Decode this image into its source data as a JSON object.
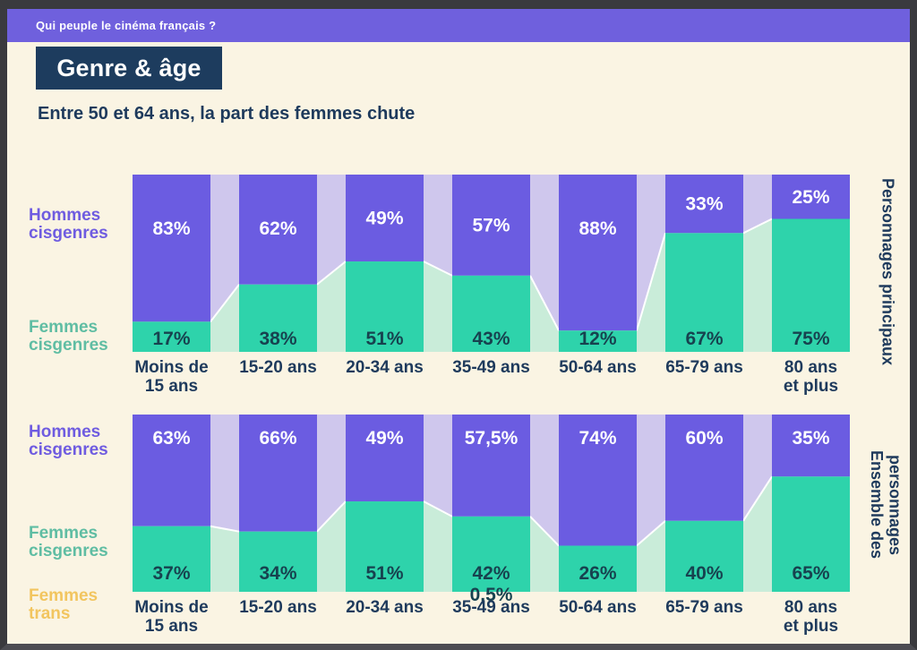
{
  "page": {
    "header_title": "Qui peuple le cinéma français ?",
    "title": "Genre & âge",
    "subtitle": "Entre 50 et 64 ans, la part des femmes chute"
  },
  "legend": {
    "hommes": "Hommes\ncisgenres",
    "femmes": "Femmes\ncisgenres",
    "trans": "Femmes\ntrans"
  },
  "colors": {
    "frame": "#3a3a3e",
    "background": "#faf4e3",
    "header_purple": "#6f60dd",
    "navy": "#1d3c5e",
    "bar_purple": "#6b5ce1",
    "bar_teal": "#2ed3ab",
    "connector_purple": "#cfc7ed",
    "connector_teal": "#c9ecd9",
    "value_on_teal": "#17424f",
    "value_on_purple": "#ffffff",
    "label_hommes": "#6f5ce0",
    "label_femmes": "#5fbda3",
    "label_trans": "#f2c55f"
  },
  "chart_data": [
    {
      "type": "area",
      "title": "Personnages principaux",
      "categories": [
        "Moins de\n15 ans",
        "15-20 ans",
        "20-34 ans",
        "35-49 ans",
        "50-64 ans",
        "65-79 ans",
        "80 ans\net plus"
      ],
      "ylim": [
        0,
        100
      ],
      "legend_position": "left",
      "series": [
        {
          "name": "Hommes cisgenres",
          "values": [
            83,
            62,
            49,
            57,
            88,
            33,
            25
          ],
          "labels": [
            "83%",
            "62%",
            "49%",
            "57%",
            "88%",
            "33%",
            "25%"
          ]
        },
        {
          "name": "Femmes cisgenres",
          "values": [
            17,
            38,
            51,
            43,
            12,
            67,
            75
          ],
          "labels": [
            "17%",
            "38%",
            "51%",
            "43%",
            "12%",
            "67%",
            "75%"
          ]
        }
      ]
    },
    {
      "type": "area",
      "title": "Ensemble des\npersonnages",
      "categories": [
        "Moins de\n15 ans",
        "15-20 ans",
        "20-34 ans",
        "35-49 ans",
        "50-64 ans",
        "65-79 ans",
        "80 ans\net plus"
      ],
      "ylim": [
        0,
        100
      ],
      "legend_position": "left",
      "series": [
        {
          "name": "Hommes cisgenres",
          "values": [
            63,
            66,
            49,
            57.5,
            74,
            60,
            35
          ],
          "labels": [
            "63%",
            "66%",
            "49%",
            "57,5%",
            "74%",
            "60%",
            "35%"
          ]
        },
        {
          "name": "Femmes cisgenres",
          "values": [
            37,
            34,
            51,
            42,
            26,
            40,
            65
          ],
          "labels": [
            "37%",
            "34%",
            "51%",
            "42%",
            "26%",
            "40%",
            "65%"
          ]
        },
        {
          "name": "Femmes trans",
          "values": [
            0,
            0,
            0,
            0.5,
            0,
            0,
            0
          ],
          "labels": [
            "",
            "",
            "",
            "0,5%",
            "",
            "",
            ""
          ]
        }
      ]
    }
  ]
}
